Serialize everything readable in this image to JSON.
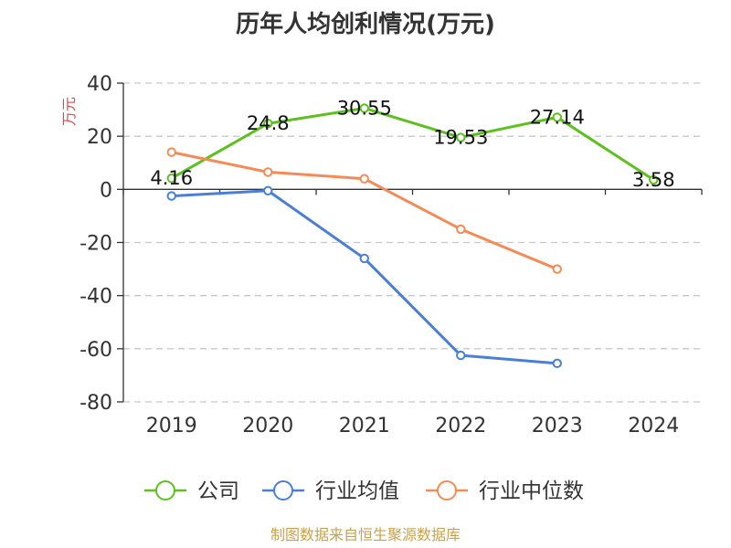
{
  "chart_data": {
    "type": "line",
    "title": "历年人均创利情况(万元)",
    "ylabel": "万元",
    "xlabel": "",
    "categories": [
      "2019",
      "2020",
      "2021",
      "2022",
      "2023",
      "2024"
    ],
    "ylim": [
      -80,
      40
    ],
    "yticks": [
      40,
      20,
      0,
      -20,
      -40,
      -60,
      -80
    ],
    "grid": true,
    "legend_position": "bottom",
    "series": [
      {
        "name": "公司",
        "color": "#5cc01f",
        "values": [
          4.16,
          24.8,
          30.55,
          19.53,
          27.14,
          3.58
        ],
        "labels": [
          "4.16",
          "24.8",
          "30.55",
          "19.53",
          "27.14",
          "3.58"
        ]
      },
      {
        "name": "行业均值",
        "color": "#4a7fd6",
        "values": [
          -2.5,
          -0.5,
          -26,
          -62.5,
          -65.5,
          null
        ]
      },
      {
        "name": "行业中位数",
        "color": "#f58a55",
        "values": [
          14,
          6.5,
          4,
          -15,
          -30,
          null
        ]
      }
    ],
    "source": "制图数据来自恒生聚源数据库"
  }
}
